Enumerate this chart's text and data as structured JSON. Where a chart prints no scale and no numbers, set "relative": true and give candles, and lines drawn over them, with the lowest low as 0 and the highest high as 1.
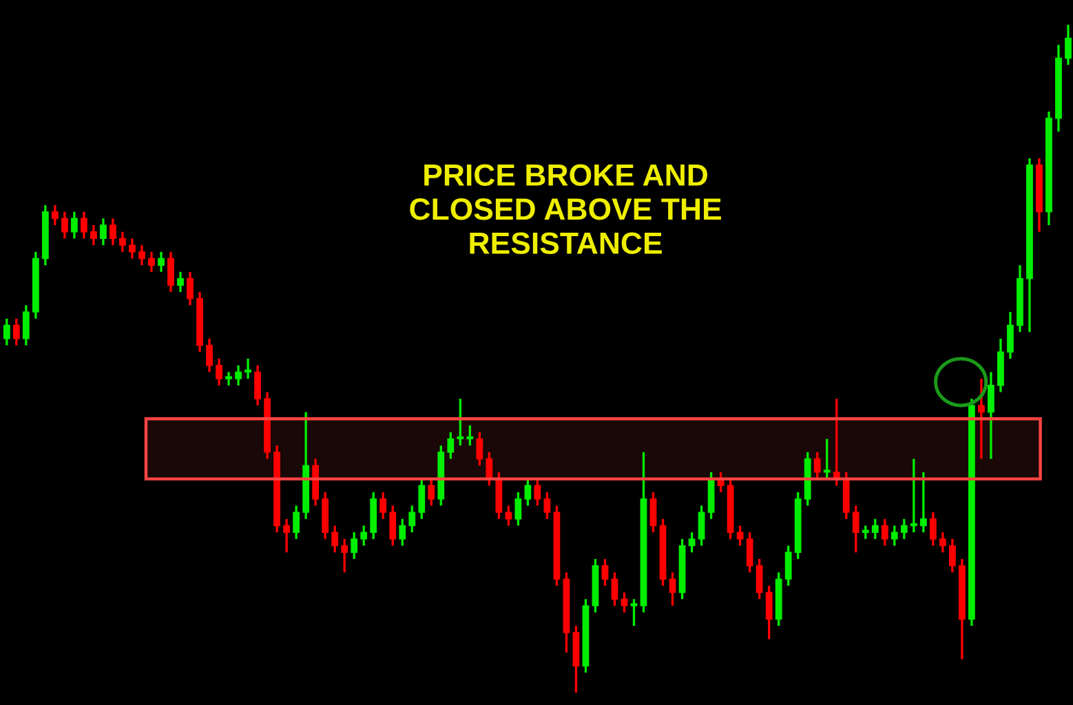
{
  "chart_data": {
    "type": "candlestick",
    "relative": true,
    "colors": [
      "#00ee00",
      "#ff0000",
      "#00ee00",
      "#00ee00",
      "#00ee00",
      "#ff0000",
      "#ff0000",
      "#00ee00",
      "#ff0000",
      "#ff0000",
      "#00ee00",
      "#ff0000",
      "#ff0000",
      "#ff0000",
      "#ff0000",
      "#ff0000",
      "#00ee00",
      "#ff0000",
      "#00ee00",
      "#ff0000",
      "#ff0000",
      "#ff0000",
      "#ff0000",
      "#00ee00",
      "#00ee00",
      "#00ee00",
      "#ff0000",
      "#ff0000",
      "#ff0000",
      "#ff0000",
      "#00ee00",
      "#00ee00",
      "#ff0000",
      "#ff0000",
      "#ff0000",
      "#ff0000",
      "#00ee00",
      "#00ee00",
      "#00ee00",
      "#ff0000",
      "#ff0000",
      "#00ee00",
      "#00ee00",
      "#00ee00",
      "#ff0000",
      "#00ee00",
      "#00ee00",
      "#00ee00",
      "#00ee00",
      "#ff0000",
      "#ff0000",
      "#ff0000",
      "#ff0000",
      "#00ee00",
      "#00ee00",
      "#ff0000",
      "#ff0000",
      "#ff0000",
      "#ff0000",
      "#ff0000",
      "#00ee00",
      "#00ee00",
      "#ff0000",
      "#ff0000",
      "#ff0000",
      "#00ee00",
      "#00ee00",
      "#ff0000",
      "#ff0000",
      "#ff0000",
      "#00ee00",
      "#00ee00",
      "#00ee00",
      "#00ee00",
      "#ff0000",
      "#ff0000",
      "#ff0000",
      "#ff0000",
      "#ff0000",
      "#ff0000",
      "#00ee00",
      "#00ee00",
      "#00ee00",
      "#00ee00",
      "#ff0000",
      "#00ee00",
      "#ff0000",
      "#ff0000",
      "#ff0000",
      "#00ee00",
      "#00ee00",
      "#ff0000",
      "#00ee00",
      "#00ee00",
      "#00ee00",
      "#00ee00",
      "#ff0000",
      "#ff0000",
      "#ff0000",
      "#ff0000",
      "#00ee00",
      "#ff0000",
      "#00ee00",
      "#00ee00",
      "#00ee00",
      "#00ee00",
      "#00ee00",
      "#ff0000",
      "#00ee00",
      "#00ee00",
      "#00ee00"
    ],
    "categories": [
      null,
      null,
      null,
      null,
      null,
      null,
      null,
      null,
      null,
      null,
      null,
      null,
      null,
      null,
      null,
      null,
      null,
      null,
      null,
      null,
      null,
      null,
      null,
      null,
      null,
      null,
      null,
      null,
      null,
      null,
      null,
      null,
      null,
      null,
      null,
      null,
      null,
      null,
      null,
      null,
      null,
      null,
      null,
      null,
      null,
      null,
      null,
      null,
      null,
      null,
      null,
      null,
      null,
      null,
      null,
      null,
      null,
      null,
      null,
      null,
      null,
      null,
      null,
      null,
      null,
      null,
      null,
      null,
      null,
      null,
      null,
      null,
      null,
      null,
      null,
      null,
      null,
      null,
      null,
      null,
      null,
      null,
      null,
      null,
      null,
      null,
      null,
      null,
      null,
      null,
      null,
      null,
      null,
      null,
      null,
      null,
      null,
      null,
      null,
      null,
      null,
      null,
      null,
      null,
      null,
      null,
      null,
      null,
      null,
      null,
      null
    ],
    "ohlc": [
      [
        0.53,
        0.56,
        0.52,
        0.55
      ],
      [
        0.55,
        0.56,
        0.52,
        0.53
      ],
      [
        0.53,
        0.58,
        0.52,
        0.57
      ],
      [
        0.57,
        0.66,
        0.56,
        0.65
      ],
      [
        0.65,
        0.73,
        0.64,
        0.72
      ],
      [
        0.72,
        0.73,
        0.7,
        0.71
      ],
      [
        0.71,
        0.72,
        0.68,
        0.69
      ],
      [
        0.69,
        0.72,
        0.68,
        0.71
      ],
      [
        0.71,
        0.72,
        0.68,
        0.69
      ],
      [
        0.69,
        0.7,
        0.67,
        0.68
      ],
      [
        0.68,
        0.71,
        0.67,
        0.7
      ],
      [
        0.7,
        0.71,
        0.67,
        0.68
      ],
      [
        0.68,
        0.69,
        0.66,
        0.67
      ],
      [
        0.67,
        0.68,
        0.65,
        0.66
      ],
      [
        0.66,
        0.67,
        0.64,
        0.65
      ],
      [
        0.65,
        0.66,
        0.63,
        0.64
      ],
      [
        0.64,
        0.66,
        0.63,
        0.65
      ],
      [
        0.65,
        0.66,
        0.6,
        0.61
      ],
      [
        0.61,
        0.63,
        0.6,
        0.62
      ],
      [
        0.62,
        0.63,
        0.58,
        0.59
      ],
      [
        0.59,
        0.6,
        0.51,
        0.52
      ],
      [
        0.52,
        0.53,
        0.48,
        0.49
      ],
      [
        0.49,
        0.5,
        0.46,
        0.47
      ],
      [
        0.47,
        0.48,
        0.46,
        0.47
      ],
      [
        0.47,
        0.49,
        0.46,
        0.48
      ],
      [
        0.48,
        0.5,
        0.47,
        0.48
      ],
      [
        0.48,
        0.49,
        0.43,
        0.44
      ],
      [
        0.44,
        0.45,
        0.35,
        0.36
      ],
      [
        0.36,
        0.37,
        0.24,
        0.25
      ],
      [
        0.25,
        0.26,
        0.21,
        0.24
      ],
      [
        0.24,
        0.28,
        0.23,
        0.27
      ],
      [
        0.27,
        0.42,
        0.26,
        0.34
      ],
      [
        0.34,
        0.35,
        0.28,
        0.29
      ],
      [
        0.29,
        0.3,
        0.23,
        0.24
      ],
      [
        0.24,
        0.25,
        0.21,
        0.22
      ],
      [
        0.22,
        0.23,
        0.18,
        0.21
      ],
      [
        0.21,
        0.24,
        0.2,
        0.23
      ],
      [
        0.23,
        0.25,
        0.22,
        0.24
      ],
      [
        0.24,
        0.3,
        0.23,
        0.29
      ],
      [
        0.29,
        0.3,
        0.26,
        0.27
      ],
      [
        0.27,
        0.28,
        0.22,
        0.23
      ],
      [
        0.23,
        0.26,
        0.22,
        0.25
      ],
      [
        0.25,
        0.28,
        0.24,
        0.27
      ],
      [
        0.27,
        0.32,
        0.26,
        0.31
      ],
      [
        0.31,
        0.32,
        0.28,
        0.29
      ],
      [
        0.29,
        0.37,
        0.28,
        0.36
      ],
      [
        0.36,
        0.39,
        0.35,
        0.38
      ],
      [
        0.38,
        0.44,
        0.37,
        0.38
      ],
      [
        0.38,
        0.4,
        0.37,
        0.38
      ],
      [
        0.38,
        0.39,
        0.34,
        0.35
      ],
      [
        0.35,
        0.36,
        0.31,
        0.32
      ],
      [
        0.32,
        0.33,
        0.26,
        0.27
      ],
      [
        0.27,
        0.28,
        0.25,
        0.26
      ],
      [
        0.26,
        0.3,
        0.25,
        0.29
      ],
      [
        0.29,
        0.32,
        0.28,
        0.31
      ],
      [
        0.31,
        0.32,
        0.28,
        0.29
      ],
      [
        0.29,
        0.3,
        0.26,
        0.27
      ],
      [
        0.27,
        0.28,
        0.16,
        0.17
      ],
      [
        0.17,
        0.18,
        0.06,
        0.09
      ],
      [
        0.09,
        0.1,
        0.0,
        0.04
      ],
      [
        0.04,
        0.14,
        0.03,
        0.13
      ],
      [
        0.13,
        0.2,
        0.12,
        0.19
      ],
      [
        0.19,
        0.2,
        0.16,
        0.17
      ],
      [
        0.17,
        0.18,
        0.13,
        0.14
      ],
      [
        0.14,
        0.15,
        0.12,
        0.13
      ],
      [
        0.13,
        0.14,
        0.1,
        0.13
      ],
      [
        0.13,
        0.36,
        0.12,
        0.29
      ],
      [
        0.29,
        0.3,
        0.24,
        0.25
      ],
      [
        0.25,
        0.26,
        0.16,
        0.17
      ],
      [
        0.17,
        0.18,
        0.13,
        0.15
      ],
      [
        0.15,
        0.23,
        0.14,
        0.22
      ],
      [
        0.22,
        0.24,
        0.21,
        0.23
      ],
      [
        0.23,
        0.28,
        0.22,
        0.27
      ],
      [
        0.27,
        0.33,
        0.26,
        0.32
      ],
      [
        0.32,
        0.33,
        0.3,
        0.31
      ],
      [
        0.31,
        0.32,
        0.23,
        0.24
      ],
      [
        0.24,
        0.25,
        0.22,
        0.23
      ],
      [
        0.23,
        0.24,
        0.18,
        0.19
      ],
      [
        0.19,
        0.2,
        0.14,
        0.15
      ],
      [
        0.15,
        0.16,
        0.08,
        0.11
      ],
      [
        0.11,
        0.18,
        0.1,
        0.17
      ],
      [
        0.17,
        0.22,
        0.16,
        0.21
      ],
      [
        0.21,
        0.3,
        0.2,
        0.29
      ],
      [
        0.29,
        0.36,
        0.28,
        0.35
      ],
      [
        0.35,
        0.36,
        0.32,
        0.33
      ],
      [
        0.33,
        0.38,
        0.32,
        0.33
      ],
      [
        0.33,
        0.44,
        0.31,
        0.32
      ],
      [
        0.32,
        0.33,
        0.26,
        0.27
      ],
      [
        0.27,
        0.28,
        0.21,
        0.24
      ],
      [
        0.24,
        0.25,
        0.23,
        0.24
      ],
      [
        0.24,
        0.26,
        0.23,
        0.25
      ],
      [
        0.25,
        0.26,
        0.22,
        0.23
      ],
      [
        0.23,
        0.25,
        0.22,
        0.24
      ],
      [
        0.24,
        0.26,
        0.23,
        0.25
      ],
      [
        0.25,
        0.35,
        0.24,
        0.25
      ],
      [
        0.25,
        0.33,
        0.24,
        0.26
      ],
      [
        0.26,
        0.27,
        0.22,
        0.23
      ],
      [
        0.23,
        0.24,
        0.21,
        0.22
      ],
      [
        0.22,
        0.23,
        0.18,
        0.19
      ],
      [
        0.19,
        0.2,
        0.05,
        0.11
      ],
      [
        0.11,
        0.44,
        0.1,
        0.43
      ],
      [
        0.43,
        0.47,
        0.35,
        0.42
      ],
      [
        0.42,
        0.48,
        0.35,
        0.46
      ],
      [
        0.46,
        0.53,
        0.45,
        0.51
      ],
      [
        0.51,
        0.57,
        0.5,
        0.55
      ],
      [
        0.55,
        0.64,
        0.54,
        0.62
      ],
      [
        0.62,
        0.8,
        0.54,
        0.79
      ],
      [
        0.79,
        0.8,
        0.69,
        0.72
      ],
      [
        0.72,
        0.87,
        0.7,
        0.86
      ],
      [
        0.86,
        0.97,
        0.84,
        0.95
      ],
      [
        0.95,
        1.0,
        0.94,
        0.98
      ]
    ],
    "bands": [
      {
        "axis": "y",
        "from": 0.32,
        "to": 0.41,
        "color": "#ff4444"
      }
    ],
    "annotations": [
      "PRICE BROKE AND\nCLOSED ABOVE THE\nRESISTANCE"
    ]
  }
}
